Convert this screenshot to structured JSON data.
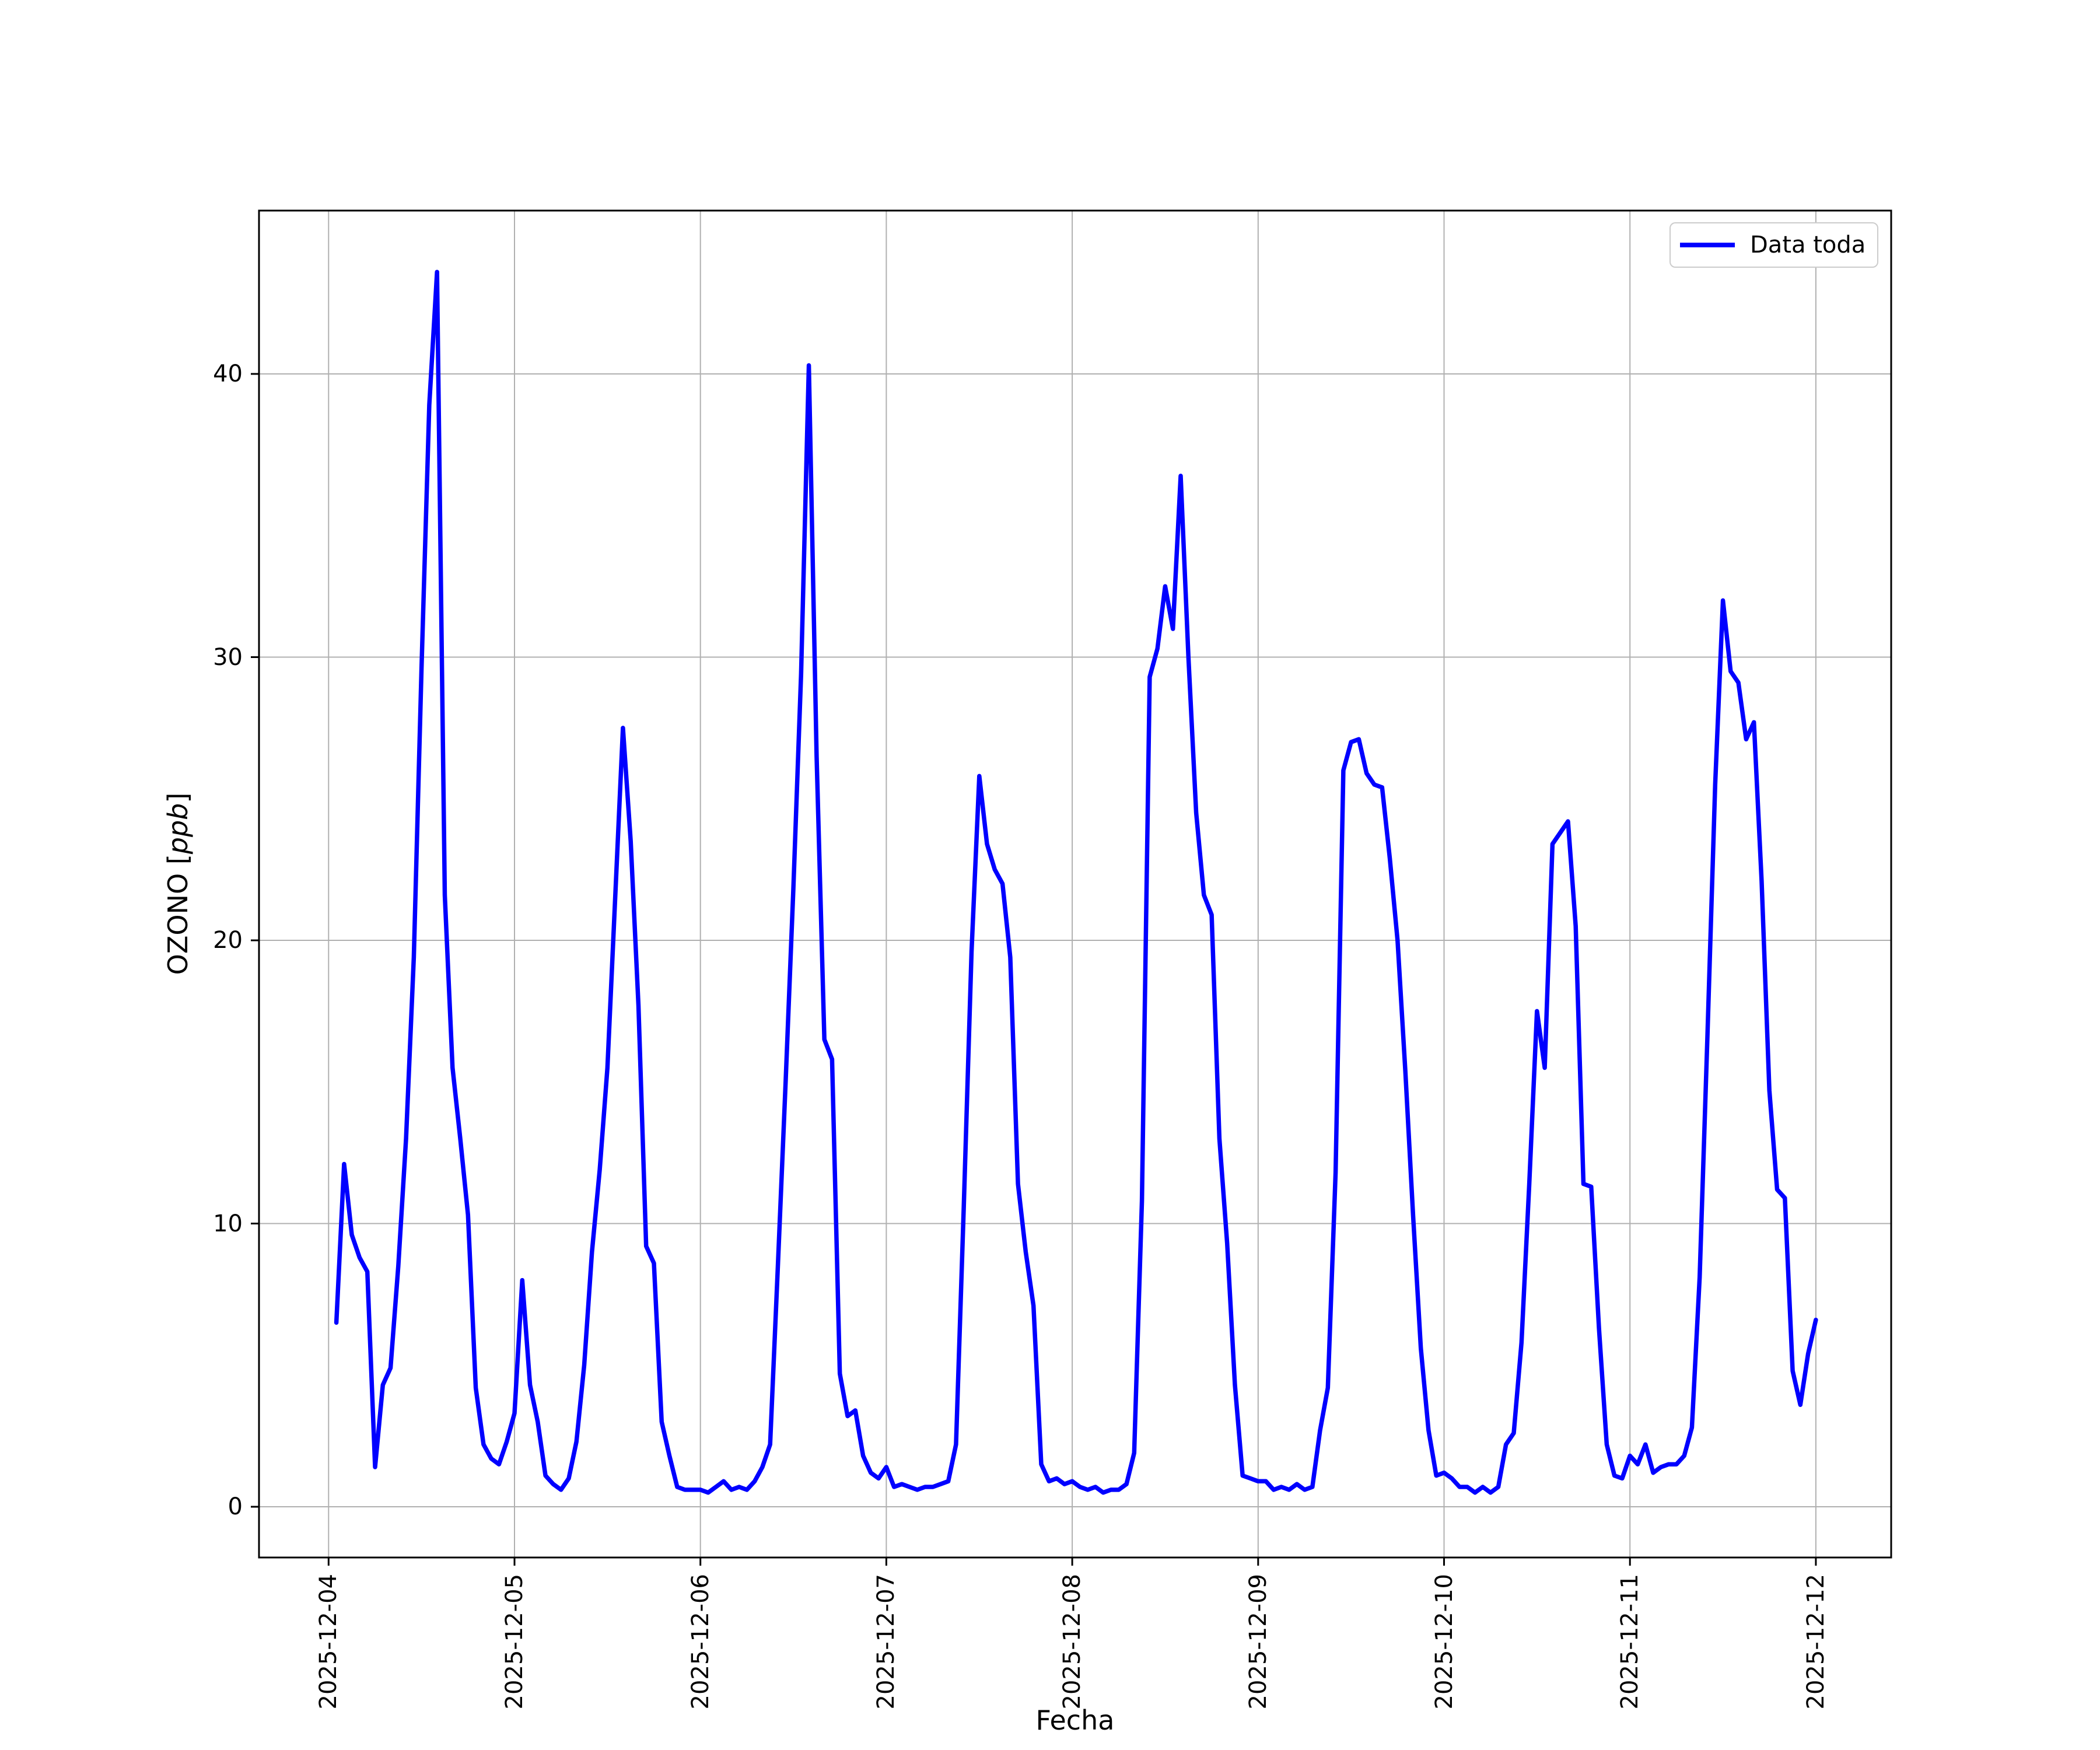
{
  "chart_data": {
    "type": "line",
    "title": "",
    "xlabel": "Fecha",
    "ylabel": "OZONO [ppb]",
    "ylabel_prefix": "OZONO [",
    "ylabel_italic": "ppb",
    "ylabel_suffix": "]",
    "grid": true,
    "legend_position": "upper right",
    "legend": {
      "entries": [
        {
          "label": "Data toda",
          "color": "#0000ff"
        }
      ]
    },
    "colors": {
      "line": "#0000ff",
      "grid": "#b0b0b0",
      "spine": "#000000",
      "background": "#ffffff",
      "legend_border": "#cccccc"
    },
    "x_tick_labels": [
      "2025-12-04",
      "2025-12-05",
      "2025-12-06",
      "2025-12-07",
      "2025-12-08",
      "2025-12-09",
      "2025-12-10",
      "2025-12-11",
      "2025-12-12"
    ],
    "y_tick_labels": [
      "0",
      "10",
      "20",
      "30",
      "40"
    ],
    "y_ticks": [
      0,
      10,
      20,
      30,
      40
    ],
    "ylim": [
      -1.8,
      45.8
    ],
    "xlim": [
      "2025-12-03 15:00",
      "2025-12-12 09:40"
    ],
    "series": [
      {
        "name": "Data toda",
        "color": "#0000ff",
        "start": "2025-12-04 01:00",
        "interval_hours": 1,
        "values": [
          6.5,
          12.1,
          9.6,
          8.8,
          8.3,
          1.4,
          4.3,
          4.9,
          8.5,
          13.0,
          19.4,
          29.6,
          38.9,
          43.6,
          21.6,
          15.5,
          13.0,
          10.3,
          4.2,
          2.2,
          1.7,
          1.5,
          2.3,
          3.3,
          8.0,
          4.3,
          3.0,
          1.1,
          0.8,
          0.6,
          1.0,
          2.3,
          5.0,
          9.0,
          11.9,
          15.5,
          21.5,
          27.5,
          23.5,
          17.7,
          9.2,
          8.6,
          3.0,
          1.8,
          0.7,
          0.6,
          0.6,
          0.6,
          0.5,
          0.7,
          0.9,
          0.6,
          0.7,
          0.6,
          0.9,
          1.4,
          2.2,
          8.5,
          15.0,
          21.8,
          29.4,
          40.3,
          26.5,
          16.5,
          15.8,
          4.7,
          3.2,
          3.4,
          1.8,
          1.2,
          1.0,
          1.4,
          0.7,
          0.8,
          0.7,
          0.6,
          0.7,
          0.7,
          0.8,
          0.9,
          2.2,
          10.6,
          19.6,
          25.8,
          23.4,
          22.5,
          22.0,
          19.4,
          11.4,
          9.0,
          7.1,
          1.5,
          0.9,
          1.0,
          0.8,
          0.9,
          0.7,
          0.6,
          0.7,
          0.5,
          0.6,
          0.6,
          0.8,
          1.9,
          10.8,
          29.3,
          30.3,
          32.5,
          31.0,
          36.4,
          30.0,
          24.5,
          21.6,
          20.9,
          13.0,
          9.3,
          4.3,
          1.1,
          1.0,
          0.9,
          0.9,
          0.6,
          0.7,
          0.6,
          0.8,
          0.6,
          0.7,
          2.7,
          4.2,
          11.8,
          26.0,
          27.0,
          27.1,
          25.9,
          25.5,
          25.4,
          22.9,
          20.0,
          15.4,
          10.3,
          5.6,
          2.7,
          1.1,
          1.2,
          1.0,
          0.7,
          0.7,
          0.5,
          0.7,
          0.5,
          0.7,
          2.2,
          2.6,
          5.8,
          11.4,
          17.5,
          15.5,
          23.4,
          23.8,
          24.2,
          20.5,
          11.4,
          11.3,
          6.3,
          2.2,
          1.1,
          1.0,
          1.8,
          1.5,
          2.2,
          1.2,
          1.4,
          1.5,
          1.5,
          1.8,
          2.8,
          8.1,
          16.6,
          25.5,
          32.0,
          29.5,
          29.1,
          27.1,
          27.7,
          22.1,
          14.7,
          11.2,
          10.9,
          4.8,
          3.6,
          5.4,
          6.6
        ]
      }
    ]
  }
}
